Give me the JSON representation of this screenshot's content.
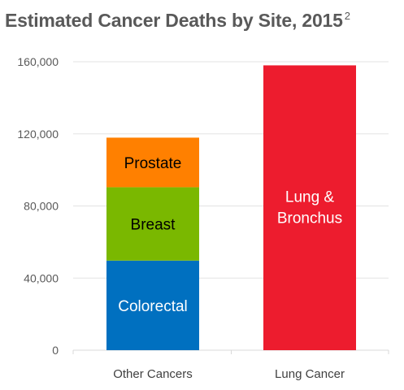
{
  "title": "Estimated Cancer Deaths by Site, 2015",
  "title_footnote": "2",
  "chart_data": {
    "type": "bar",
    "stacked": true,
    "title": "Estimated Cancer Deaths by Site, 2015",
    "categories": [
      "Other Cancers",
      "Lung Cancer"
    ],
    "series": [
      {
        "name": "Colorectal",
        "values": [
          49700,
          0
        ],
        "color": "#0070c0",
        "label_color": "#ffffff"
      },
      {
        "name": "Breast",
        "values": [
          40700,
          0
        ],
        "color": "#7ab800",
        "label_color": "#000000"
      },
      {
        "name": "Prostate",
        "values": [
          27500,
          0
        ],
        "color": "#ff8000",
        "label_color": "#000000"
      },
      {
        "name": "Lung & Bronchus",
        "values": [
          0,
          158000
        ],
        "color": "#ed1c2e",
        "label_color": "#ffffff"
      }
    ],
    "yticks": [
      "0",
      "40,000",
      "80,000",
      "120,000",
      "160,000"
    ],
    "ytick_values": [
      0,
      40000,
      80000,
      120000,
      160000
    ],
    "ylim": [
      0,
      160000
    ],
    "grid": true,
    "legend": "none"
  }
}
